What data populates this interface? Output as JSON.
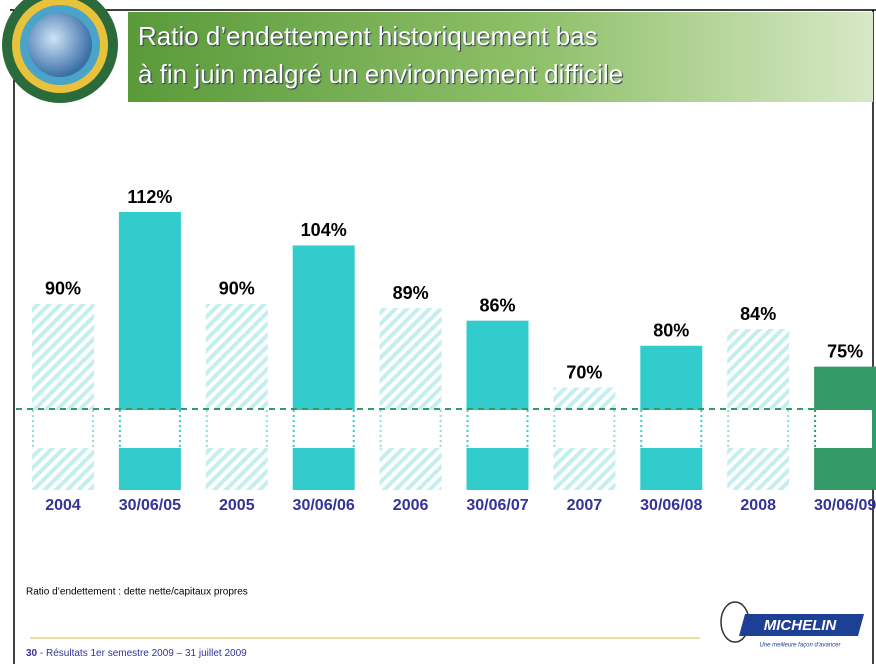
{
  "header": {
    "title_lines": [
      "Ratio d’endettement historiquement bas",
      "à fin juin malgré un environnement difficile"
    ]
  },
  "chart_data": {
    "type": "bar",
    "categories": [
      "2004",
      "30/06/05",
      "2005",
      "30/06/06",
      "2006",
      "30/06/07",
      "2007",
      "30/06/08",
      "2008",
      "30/06/09"
    ],
    "values": [
      90,
      112,
      90,
      104,
      89,
      86,
      70,
      80,
      84,
      75
    ],
    "value_labels": [
      "90%",
      "112%",
      "90%",
      "104%",
      "89%",
      "86%",
      "70%",
      "80%",
      "84%",
      "75%"
    ],
    "colors": [
      "#ccf2f2",
      "#33cccc",
      "#ccf2f2",
      "#33cccc",
      "#ccf2f2",
      "#33cccc",
      "#ccf2f2",
      "#33cccc",
      "#ccf2f2",
      "#339966"
    ],
    "hatched": [
      true,
      false,
      true,
      false,
      true,
      false,
      true,
      false,
      true,
      false
    ],
    "axis_break": true
  },
  "footnote": "Ratio d’endettement : dette nette/capitaux propres",
  "footer": {
    "page": "30",
    "text": " - Résultats 1er semestre  2009 – 31 juillet 2009"
  },
  "logo": {
    "brand": "MICHELIN",
    "tagline": "Une meilleure façon d’avancer"
  }
}
